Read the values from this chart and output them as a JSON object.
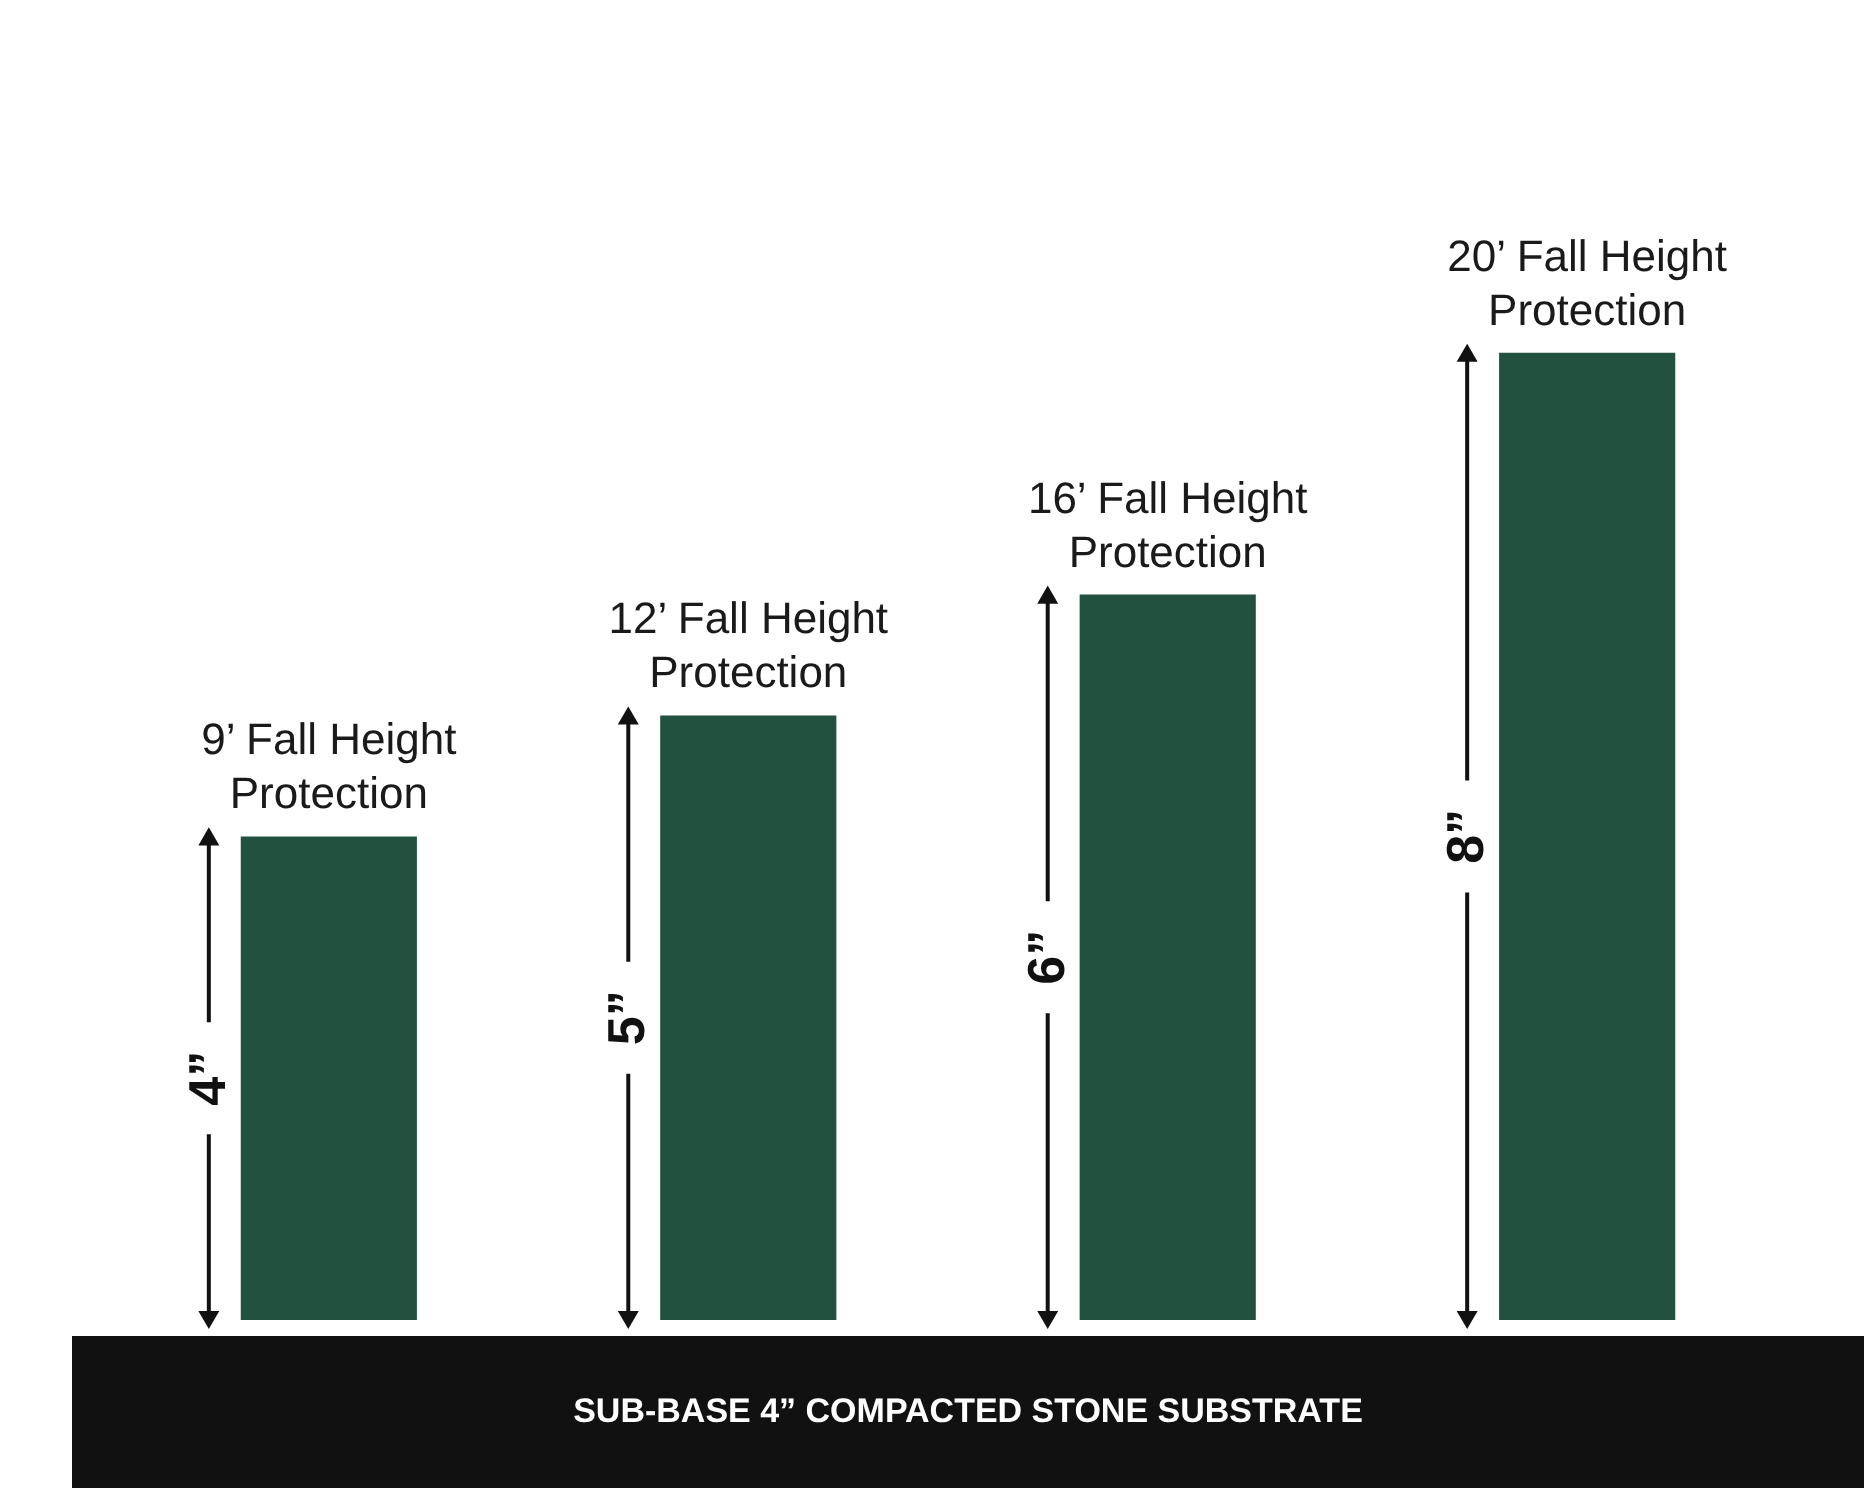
{
  "chart_data": {
    "type": "bar",
    "categories": [
      "9’ Fall Height\nProtection",
      "12’ Fall Height\nProtection",
      "16’ Fall Height\nProtection",
      "20’ Fall Height\nProtection"
    ],
    "values": [
      4,
      5,
      6,
      8
    ],
    "value_labels": [
      "4”",
      "5”",
      "6”",
      "8”"
    ],
    "color": "#23513f",
    "tick_labels": false,
    "annotations": [
      "SUB-BASE 4” COMPACTED STONE SUBSTRATE"
    ]
  }
}
